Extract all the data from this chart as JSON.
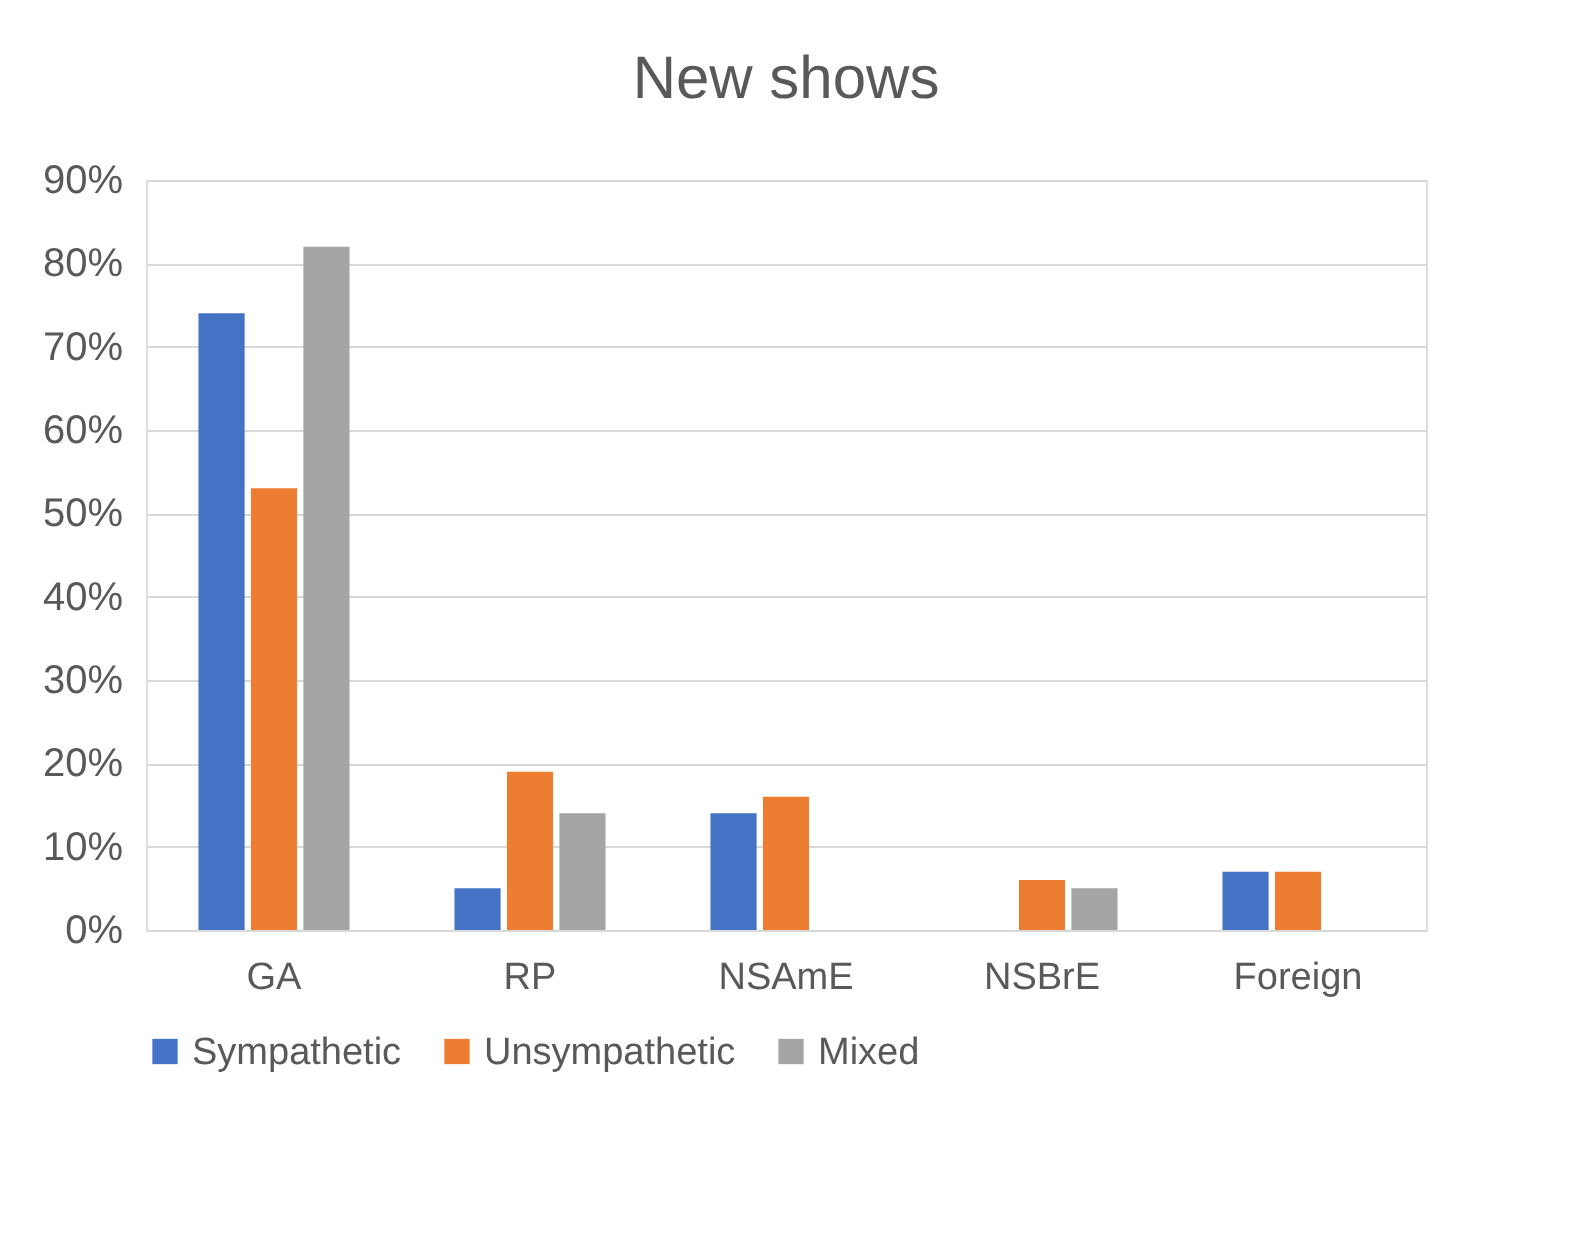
{
  "chart_data": {
    "type": "bar",
    "title": "New shows",
    "categories": [
      "GA",
      "RP",
      "NSAmE",
      "NSBrE",
      "Foreign"
    ],
    "series": [
      {
        "name": "Sympathetic",
        "color": "#4472c4",
        "values": [
          74,
          5,
          14,
          null,
          7
        ]
      },
      {
        "name": "Unsympathetic",
        "color": "#ed7d31",
        "values": [
          53,
          19,
          16,
          6,
          7
        ]
      },
      {
        "name": "Mixed",
        "color": "#a5a5a5",
        "values": [
          82,
          14,
          null,
          5,
          null
        ]
      }
    ],
    "ylim": [
      0,
      90
    ],
    "yticks": [
      {
        "value": 0,
        "label": "0%"
      },
      {
        "value": 10,
        "label": "10%"
      },
      {
        "value": 20,
        "label": "20%"
      },
      {
        "value": 30,
        "label": "30%"
      },
      {
        "value": 40,
        "label": "40%"
      },
      {
        "value": 50,
        "label": "50%"
      },
      {
        "value": 60,
        "label": "60%"
      },
      {
        "value": 70,
        "label": "70%"
      },
      {
        "value": 80,
        "label": "80%"
      },
      {
        "value": 90,
        "label": "90%"
      }
    ],
    "grid": "y",
    "legend": "bottom"
  }
}
